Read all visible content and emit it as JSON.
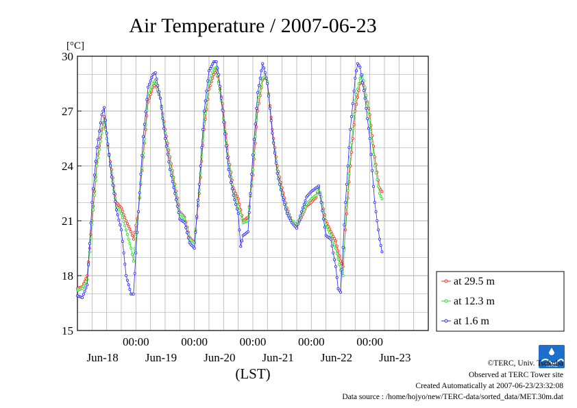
{
  "chart_data": {
    "type": "line",
    "title": "Air Temperature / 2007-06-23",
    "ylabel": "[°C]",
    "xlabel": "(LST)",
    "ylim": [
      15,
      30
    ],
    "yticks": [
      "15",
      "18",
      "21",
      "24",
      "27",
      "30"
    ],
    "xlim": [
      0,
      144
    ],
    "x_tick_labels": [
      {
        "x": 24,
        "time": "00:00",
        "date": "Jun-18"
      },
      {
        "x": 48,
        "time": "00:00",
        "date": "Jun-19"
      },
      {
        "x": 72,
        "time": "00:00",
        "date": "Jun-20"
      },
      {
        "x": 96,
        "time": "00:00",
        "date": "Jun-21"
      },
      {
        "x": 120,
        "time": "00:00",
        "date": "Jun-22"
      }
    ],
    "x_date_labels": [
      {
        "x": 12,
        "date": "Jun-18"
      },
      {
        "x": 36,
        "date": "Jun-19"
      },
      {
        "x": 60,
        "date": "Jun-20"
      },
      {
        "x": 84,
        "date": "Jun-21"
      },
      {
        "x": 108,
        "date": "Jun-22"
      },
      {
        "x": 132,
        "date": "Jun-23"
      }
    ],
    "grid": true,
    "legend_position": "right",
    "series": [
      {
        "name": "at 29.5 m",
        "color": "#ff2020",
        "points": [
          [
            0,
            17.3
          ],
          [
            2,
            17.4
          ],
          [
            4,
            18.0
          ],
          [
            6,
            21.0
          ],
          [
            8,
            24.2
          ],
          [
            10,
            26.0
          ],
          [
            11,
            26.7
          ],
          [
            12,
            25.5
          ],
          [
            14,
            23.8
          ],
          [
            16,
            22.0
          ],
          [
            18,
            21.7
          ],
          [
            20,
            21.0
          ],
          [
            22,
            20.4
          ],
          [
            23,
            20.0
          ],
          [
            25,
            21.5
          ],
          [
            27,
            24.5
          ],
          [
            29,
            27.5
          ],
          [
            31,
            28.3
          ],
          [
            32,
            28.5
          ],
          [
            34,
            27.7
          ],
          [
            36,
            26.0
          ],
          [
            38,
            24.5
          ],
          [
            40,
            23.0
          ],
          [
            42,
            21.5
          ],
          [
            44,
            21.2
          ],
          [
            46,
            20.1
          ],
          [
            48,
            19.8
          ],
          [
            50,
            22.5
          ],
          [
            52,
            26.0
          ],
          [
            54,
            28.2
          ],
          [
            56,
            29.0
          ],
          [
            57,
            29.2
          ],
          [
            58,
            28.6
          ],
          [
            60,
            27.0
          ],
          [
            62,
            24.5
          ],
          [
            64,
            22.8
          ],
          [
            66,
            22.2
          ],
          [
            68,
            21.0
          ],
          [
            70,
            21.2
          ],
          [
            72,
            23.5
          ],
          [
            74,
            27.0
          ],
          [
            76,
            28.7
          ],
          [
            77,
            28.9
          ],
          [
            78,
            28.6
          ],
          [
            80,
            26.0
          ],
          [
            82,
            24.0
          ],
          [
            84,
            22.8
          ],
          [
            86,
            21.7
          ],
          [
            88,
            21.0
          ],
          [
            90,
            20.7
          ],
          [
            92,
            21.2
          ],
          [
            94,
            21.8
          ],
          [
            96,
            22.0
          ],
          [
            98,
            22.3
          ],
          [
            99,
            22.8
          ],
          [
            100,
            22.3
          ],
          [
            102,
            21.0
          ],
          [
            104,
            20.4
          ],
          [
            106,
            19.9
          ],
          [
            108,
            18.8
          ],
          [
            109,
            18.5
          ],
          [
            110,
            20.5
          ],
          [
            112,
            24.0
          ],
          [
            114,
            27.0
          ],
          [
            116,
            28.5
          ],
          [
            117,
            28.6
          ],
          [
            118,
            28.2
          ],
          [
            120,
            26.8
          ],
          [
            122,
            24.5
          ],
          [
            124,
            22.8
          ],
          [
            125,
            22.6
          ]
        ]
      },
      {
        "name": "at 12.3 m",
        "color": "#20e020",
        "points": [
          [
            0,
            17.2
          ],
          [
            2,
            17.3
          ],
          [
            4,
            17.8
          ],
          [
            6,
            20.8
          ],
          [
            8,
            24.0
          ],
          [
            10,
            25.8
          ],
          [
            11,
            26.5
          ],
          [
            12,
            25.5
          ],
          [
            14,
            23.6
          ],
          [
            16,
            21.8
          ],
          [
            18,
            21.4
          ],
          [
            20,
            20.5
          ],
          [
            22,
            19.5
          ],
          [
            23,
            18.8
          ],
          [
            25,
            21.5
          ],
          [
            27,
            24.7
          ],
          [
            29,
            27.8
          ],
          [
            31,
            28.5
          ],
          [
            32,
            28.7
          ],
          [
            34,
            27.7
          ],
          [
            36,
            25.8
          ],
          [
            38,
            24.2
          ],
          [
            40,
            22.8
          ],
          [
            42,
            21.4
          ],
          [
            44,
            21.1
          ],
          [
            46,
            20.0
          ],
          [
            48,
            19.8
          ],
          [
            50,
            22.7
          ],
          [
            52,
            26.3
          ],
          [
            54,
            28.6
          ],
          [
            56,
            29.3
          ],
          [
            57,
            29.4
          ],
          [
            58,
            28.5
          ],
          [
            60,
            26.6
          ],
          [
            62,
            24.2
          ],
          [
            64,
            22.6
          ],
          [
            66,
            21.8
          ],
          [
            68,
            20.9
          ],
          [
            70,
            21.0
          ],
          [
            72,
            23.8
          ],
          [
            74,
            27.4
          ],
          [
            76,
            28.8
          ],
          [
            77,
            28.9
          ],
          [
            78,
            28.6
          ],
          [
            80,
            25.8
          ],
          [
            82,
            23.8
          ],
          [
            84,
            22.5
          ],
          [
            86,
            21.5
          ],
          [
            88,
            21.0
          ],
          [
            90,
            20.8
          ],
          [
            92,
            21.3
          ],
          [
            94,
            21.9
          ],
          [
            96,
            22.2
          ],
          [
            98,
            22.4
          ],
          [
            99,
            22.8
          ],
          [
            100,
            22.3
          ],
          [
            102,
            20.8
          ],
          [
            104,
            20.2
          ],
          [
            106,
            19.5
          ],
          [
            108,
            18.3
          ],
          [
            109,
            18.0
          ],
          [
            110,
            20.8
          ],
          [
            112,
            24.5
          ],
          [
            114,
            27.6
          ],
          [
            116,
            28.8
          ],
          [
            117,
            29.0
          ],
          [
            118,
            28.3
          ],
          [
            120,
            26.5
          ],
          [
            122,
            24.0
          ],
          [
            124,
            22.5
          ],
          [
            125,
            22.2
          ]
        ]
      },
      {
        "name": "at 1.6 m",
        "color": "#2020ff",
        "points": [
          [
            0,
            16.9
          ],
          [
            2,
            16.8
          ],
          [
            4,
            17.5
          ],
          [
            6,
            22.0
          ],
          [
            8,
            25.0
          ],
          [
            10,
            26.8
          ],
          [
            11,
            27.2
          ],
          [
            12,
            25.8
          ],
          [
            14,
            23.4
          ],
          [
            16,
            21.6
          ],
          [
            18,
            20.5
          ],
          [
            20,
            18.0
          ],
          [
            22,
            17.0
          ],
          [
            23,
            17.0
          ],
          [
            25,
            21.5
          ],
          [
            27,
            25.6
          ],
          [
            29,
            28.3
          ],
          [
            31,
            29.0
          ],
          [
            32,
            29.1
          ],
          [
            34,
            27.7
          ],
          [
            36,
            25.5
          ],
          [
            38,
            23.8
          ],
          [
            40,
            22.5
          ],
          [
            42,
            21.1
          ],
          [
            44,
            20.9
          ],
          [
            46,
            19.8
          ],
          [
            48,
            19.5
          ],
          [
            50,
            23.0
          ],
          [
            52,
            27.0
          ],
          [
            54,
            29.2
          ],
          [
            56,
            29.7
          ],
          [
            57,
            29.7
          ],
          [
            58,
            29.0
          ],
          [
            60,
            26.4
          ],
          [
            62,
            23.8
          ],
          [
            64,
            22.4
          ],
          [
            66,
            21.4
          ],
          [
            67,
            19.6
          ],
          [
            68,
            20.2
          ],
          [
            70,
            20.4
          ],
          [
            72,
            24.6
          ],
          [
            74,
            28.0
          ],
          [
            76,
            29.6
          ],
          [
            77,
            29.1
          ],
          [
            78,
            28.5
          ],
          [
            80,
            25.8
          ],
          [
            82,
            23.6
          ],
          [
            84,
            22.4
          ],
          [
            86,
            21.4
          ],
          [
            88,
            20.9
          ],
          [
            90,
            20.6
          ],
          [
            92,
            21.5
          ],
          [
            94,
            22.3
          ],
          [
            96,
            22.6
          ],
          [
            98,
            22.8
          ],
          [
            99,
            22.9
          ],
          [
            100,
            22.0
          ],
          [
            102,
            20.2
          ],
          [
            104,
            20.0
          ],
          [
            106,
            18.5
          ],
          [
            107,
            17.3
          ],
          [
            108,
            17.1
          ],
          [
            110,
            22.0
          ],
          [
            112,
            26.0
          ],
          [
            114,
            28.8
          ],
          [
            115,
            29.6
          ],
          [
            116,
            29.4
          ],
          [
            118,
            27.7
          ],
          [
            120,
            25.5
          ],
          [
            122,
            22.0
          ],
          [
            124,
            20.0
          ],
          [
            125,
            19.3
          ]
        ]
      }
    ]
  },
  "footer": {
    "copyright": "©TERC, Univ. Tsukuba",
    "observed": "Observed at TERC Tower site",
    "created": "Created Automatically at 2007-06-23/23:32:08",
    "source": "Data source : /home/hojyo/new/TERC-data/sorted_data/MET.30m.dat"
  },
  "logo": {
    "text": "TERC"
  },
  "colors": {
    "grid": "#b0b0b0",
    "axis": "#000000",
    "logo": "#1e6fcc"
  }
}
